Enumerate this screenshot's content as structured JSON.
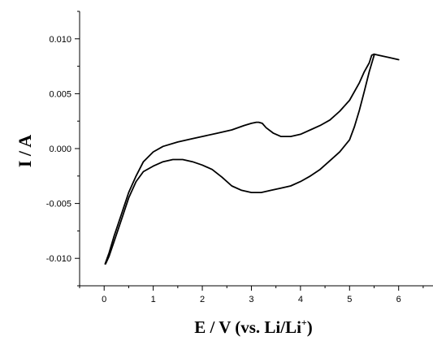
{
  "chart_data": {
    "type": "line",
    "xlabel": "E / V (vs. Li/Li",
    "xlabel_superscript": "+",
    "xlabel_suffix": ")",
    "ylabel": "I / A",
    "xlim": [
      -0.5,
      6.7
    ],
    "ylim": [
      -0.0125,
      0.0125
    ],
    "x_ticks": [
      0,
      1,
      2,
      3,
      4,
      5,
      6
    ],
    "x_tick_labels": [
      "0",
      "1",
      "2",
      "3",
      "4",
      "5",
      "6"
    ],
    "y_ticks": [
      -0.01,
      -0.005,
      0.0,
      0.005,
      0.01
    ],
    "y_tick_labels": [
      "-0.010",
      "-0.005",
      "0.000",
      "0.005",
      "0.010"
    ],
    "grid": false,
    "legend": "none",
    "series": [
      {
        "color": "#000000",
        "x": [
          0.02,
          0.1,
          0.2,
          0.35,
          0.5,
          0.65,
          0.8,
          1.0,
          1.2,
          1.5,
          1.8,
          2.0,
          2.3,
          2.6,
          2.85,
          3.0,
          3.1,
          3.15,
          3.22,
          3.3,
          3.45,
          3.6,
          3.8,
          4.0,
          4.2,
          4.4,
          4.6,
          4.8,
          5.0,
          5.2,
          5.3,
          5.4,
          5.45,
          5.5,
          5.6,
          5.8,
          6.0
        ],
        "y": [
          -0.0105,
          -0.0095,
          -0.008,
          -0.006,
          -0.004,
          -0.0025,
          -0.0012,
          -0.0003,
          0.0002,
          0.0006,
          0.0009,
          0.0011,
          0.0014,
          0.0017,
          0.0021,
          0.0023,
          0.0024,
          0.0024,
          0.0023,
          0.0019,
          0.0014,
          0.0011,
          0.0011,
          0.0013,
          0.0017,
          0.0021,
          0.0026,
          0.0034,
          0.0044,
          0.006,
          0.007,
          0.0078,
          0.0085,
          0.0086,
          0.0085,
          0.0083,
          0.0081
        ]
      },
      {
        "color": "#000000",
        "x": [
          5.5,
          5.4,
          5.3,
          5.2,
          5.1,
          5.0,
          4.8,
          4.6,
          4.4,
          4.2,
          4.0,
          3.8,
          3.6,
          3.4,
          3.2,
          3.1,
          3.0,
          2.8,
          2.6,
          2.4,
          2.2,
          2.0,
          1.8,
          1.6,
          1.4,
          1.2,
          1.0,
          0.8,
          0.65,
          0.5,
          0.35,
          0.2,
          0.1,
          0.03
        ],
        "y": [
          0.0085,
          0.007,
          0.0052,
          0.0035,
          0.002,
          0.0008,
          -0.0003,
          -0.0011,
          -0.0019,
          -0.0025,
          -0.003,
          -0.0034,
          -0.0036,
          -0.0038,
          -0.004,
          -0.004,
          -0.004,
          -0.0038,
          -0.0034,
          -0.0026,
          -0.0019,
          -0.0015,
          -0.0012,
          -0.001,
          -0.001,
          -0.0012,
          -0.0016,
          -0.0021,
          -0.003,
          -0.0045,
          -0.0065,
          -0.0085,
          -0.0098,
          -0.0105
        ]
      }
    ]
  }
}
